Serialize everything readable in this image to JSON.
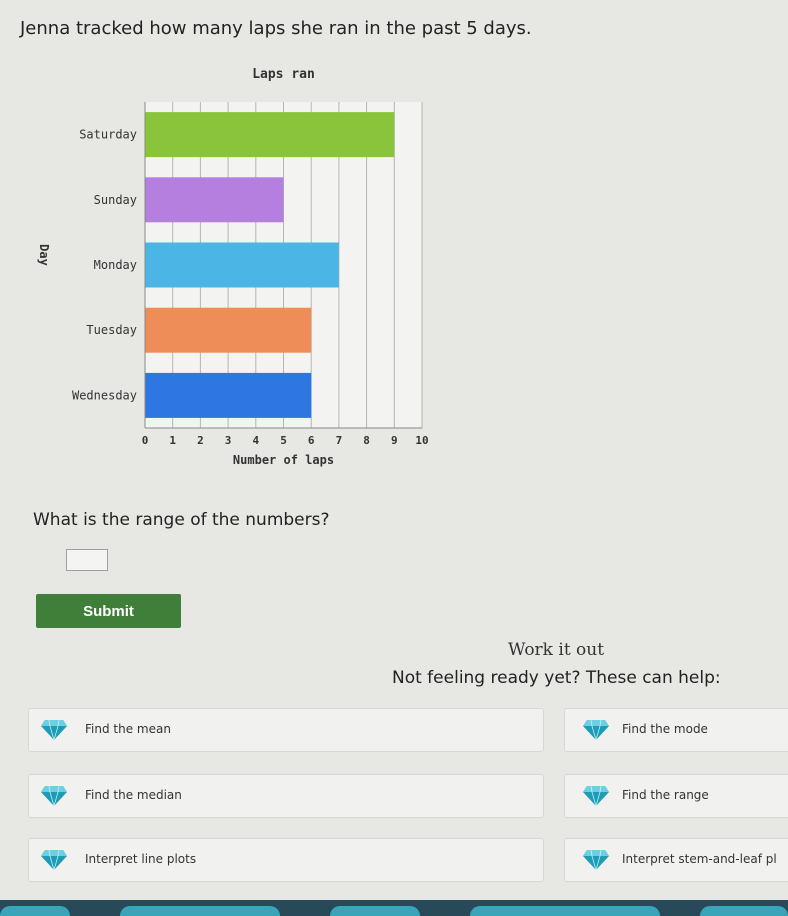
{
  "question": {
    "text": "Jenna tracked how many laps she ran in the past 5 days."
  },
  "chart_data": {
    "type": "bar",
    "orientation": "horizontal",
    "title": "Laps ran",
    "xlabel": "Number of laps",
    "ylabel": "Day",
    "categories": [
      "Saturday",
      "Sunday",
      "Monday",
      "Tuesday",
      "Wednesday"
    ],
    "values": [
      9,
      5,
      7,
      6,
      6
    ],
    "colors": [
      "#8ac43a",
      "#b57fe0",
      "#4bb6e6",
      "#ee8d58",
      "#2e76e2"
    ],
    "xlim": [
      0,
      10
    ],
    "xticks": [
      0,
      1,
      2,
      3,
      4,
      5,
      6,
      7,
      8,
      9,
      10
    ],
    "grid": true
  },
  "prompt": {
    "text": "What is the range of the numbers?"
  },
  "answer": {
    "value": "",
    "placeholder": ""
  },
  "submit": {
    "label": "Submit",
    "color": "#3f7f3a"
  },
  "help": {
    "heading": "Work it out",
    "intro": "Not feeling ready yet? These can help:",
    "items": [
      {
        "label": "Find the mean",
        "icon": "diamond-icon"
      },
      {
        "label": "Find the mode",
        "icon": "diamond-icon"
      },
      {
        "label": "Find the median",
        "icon": "diamond-icon"
      },
      {
        "label": "Find the range",
        "icon": "diamond-icon"
      },
      {
        "label": "Interpret line plots",
        "icon": "diamond-icon"
      },
      {
        "label": "Interpret stem-and-leaf pl",
        "icon": "diamond-icon"
      }
    ],
    "gem_color": "#1e9bb5"
  }
}
